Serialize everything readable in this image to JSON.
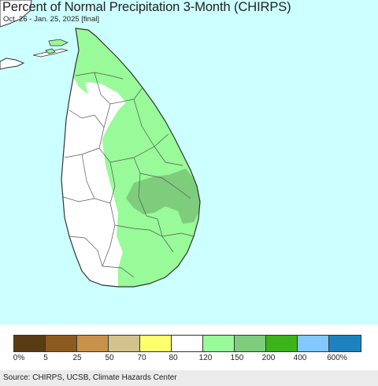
{
  "title": "Percent of Normal Precipitation 3-Month (CHIRPS)",
  "subtitle": "Oct. 26 - Jan. 25, 2025 [final]",
  "source": "Source: CHIRPS, UCSB, Climate Hazards Center",
  "colors": {
    "ocean": "#ccffff",
    "land_normal": "#ffffff",
    "border": "#333333"
  },
  "legend": {
    "swatches": [
      {
        "color": "#5a3c14"
      },
      {
        "color": "#8c5a1e"
      },
      {
        "color": "#c8914b"
      },
      {
        "color": "#d2c38c"
      },
      {
        "color": "#ffff6e"
      },
      {
        "color": "#ffffff"
      },
      {
        "color": "#98fa98"
      },
      {
        "color": "#7dcd7d"
      },
      {
        "color": "#3cb419"
      },
      {
        "color": "#82c8ff"
      },
      {
        "color": "#1e82be"
      }
    ],
    "labels": [
      "0%",
      "5",
      "25",
      "50",
      "70",
      "80",
      "120",
      "150",
      "200",
      "400",
      "600%"
    ]
  }
}
